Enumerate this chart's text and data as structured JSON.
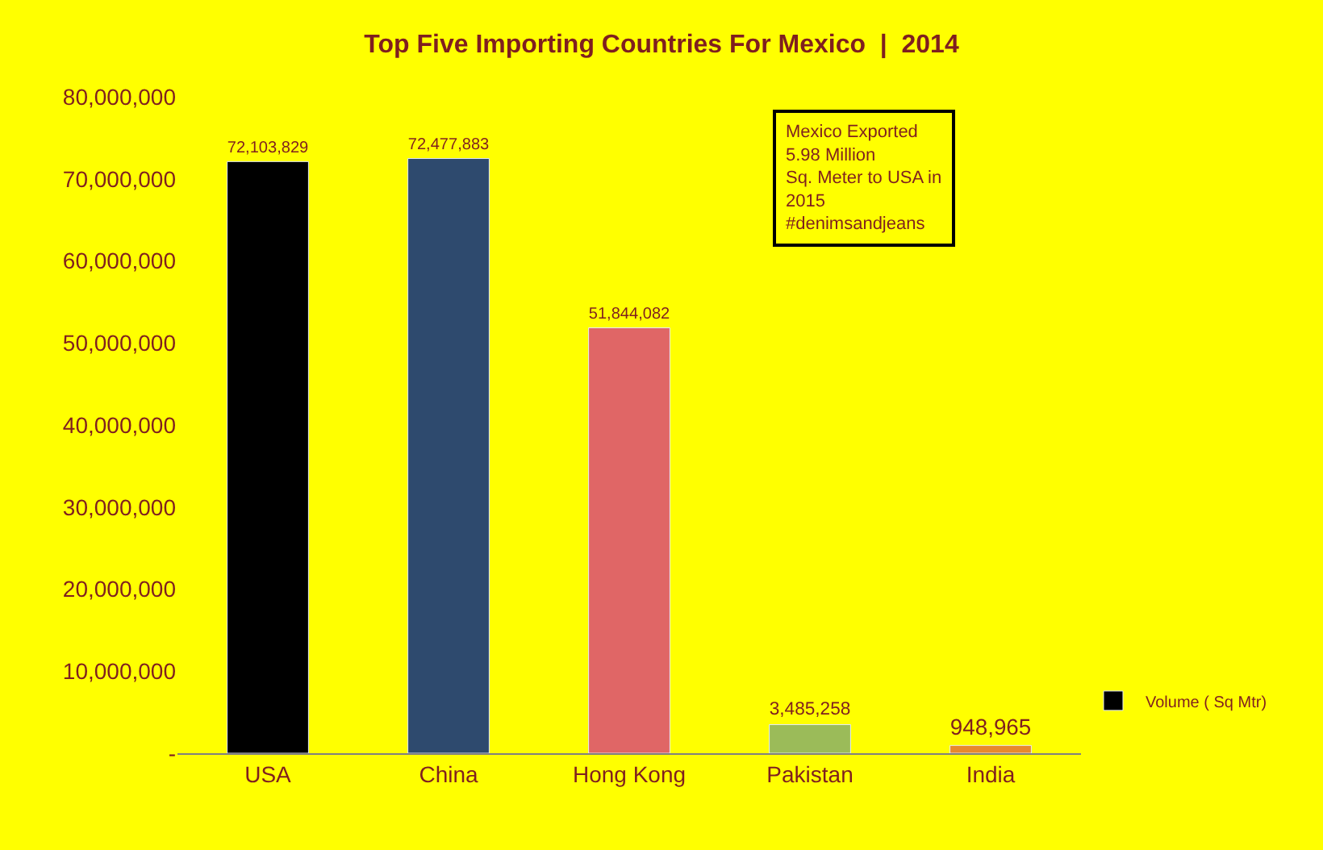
{
  "chart_data": {
    "type": "bar",
    "title": "Top Five Importing Countries For Mexico  |  2014",
    "categories": [
      "USA",
      "China",
      "Hong Kong",
      "Pakistan",
      "India"
    ],
    "series": [
      {
        "name": "Volume ( Sq Mtr)",
        "colors": [
          "#000000",
          "#2e4a6e",
          "#e06666",
          "#9bbb59",
          "#e8892c"
        ],
        "values": [
          72103829,
          72477883,
          51844082,
          3485258,
          948965
        ],
        "value_labels": [
          "72,103,829",
          "72,477,883",
          "51,844,082",
          "3,485,258",
          "948,965"
        ]
      }
    ],
    "ylim": [
      0,
      80000000
    ],
    "yticks": [
      {
        "value": 0,
        "label": "-"
      },
      {
        "value": 10000000,
        "label": "10,000,000"
      },
      {
        "value": 20000000,
        "label": "20,000,000"
      },
      {
        "value": 30000000,
        "label": "30,000,000"
      },
      {
        "value": 40000000,
        "label": "40,000,000"
      },
      {
        "value": 50000000,
        "label": "50,000,000"
      },
      {
        "value": 60000000,
        "label": "60,000,000"
      },
      {
        "value": 70000000,
        "label": "70,000,000"
      },
      {
        "value": 80000000,
        "label": "80,000,000"
      }
    ],
    "grid": false,
    "legend": "right",
    "annotations": [
      "Mexico Exported\n5.98 Million\nSq. Meter to USA in\n2015\n#denimsandjeans"
    ]
  }
}
